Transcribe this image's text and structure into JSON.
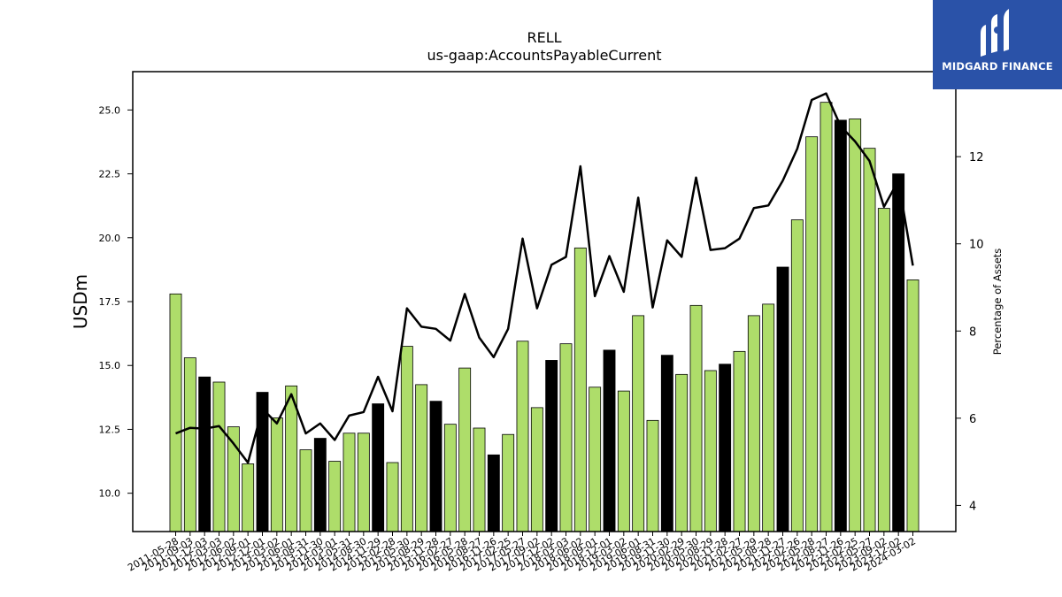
{
  "chart_data": {
    "type": "bar",
    "title": "RELL",
    "subtitle": "us-gaap:AccountsPayableCurrent",
    "ylabel": "USDm",
    "y2label": "Percentage of Assets",
    "ylim": [
      8.5,
      26.5
    ],
    "y2lim": [
      3.4,
      13.95
    ],
    "yticks": [
      10.0,
      12.5,
      15.0,
      17.5,
      20.0,
      22.5,
      25.0
    ],
    "yticklabels": [
      "10.0",
      "12.5",
      "15.0",
      "17.5",
      "20.0",
      "22.5",
      "25.0"
    ],
    "y2ticks": [
      4,
      6,
      8,
      10,
      12
    ],
    "y2ticklabels": [
      "4",
      "6",
      "8",
      "10",
      "12"
    ],
    "x": [
      "2011-05-28",
      "2011-09-03",
      "2011-12-03",
      "2012-03-03",
      "2012-06-02",
      "2012-09-01",
      "2012-12-01",
      "2013-03-02",
      "2013-06-01",
      "2013-08-31",
      "2013-11-30",
      "2014-03-01",
      "2014-05-31",
      "2014-08-30",
      "2014-11-29",
      "2015-02-28",
      "2015-05-30",
      "2015-08-29",
      "2015-11-28",
      "2016-02-27",
      "2016-05-28",
      "2016-08-27",
      "2016-11-26",
      "2017-02-25",
      "2017-05-27",
      "2017-09-02",
      "2017-12-02",
      "2018-03-03",
      "2018-06-02",
      "2018-09-01",
      "2018-12-01",
      "2019-03-02",
      "2019-06-01",
      "2019-08-31",
      "2019-11-30",
      "2020-02-29",
      "2020-05-30",
      "2020-08-29",
      "2020-11-28",
      "2021-02-27",
      "2021-05-29",
      "2021-08-28",
      "2021-11-27",
      "2022-02-26",
      "2022-05-28",
      "2022-08-27",
      "2022-11-26",
      "2023-02-25",
      "2023-05-27",
      "2023-09-02",
      "2023-12-02",
      "2024-03-02"
    ],
    "series": [
      {
        "type": "bar",
        "values": [
          17.8,
          15.3,
          14.55,
          14.35,
          12.6,
          11.15,
          13.95,
          12.95,
          14.2,
          11.7,
          12.15,
          11.25,
          12.35,
          12.35,
          13.5,
          11.2,
          15.75,
          14.25,
          13.6,
          12.7,
          14.9,
          12.55,
          11.5,
          12.3,
          15.95,
          13.35,
          15.2,
          15.85,
          19.6,
          14.15,
          15.6,
          14.0,
          16.95,
          12.85,
          15.4,
          14.65,
          17.35,
          14.8,
          15.05,
          15.55,
          16.95,
          17.4,
          18.85,
          20.7,
          23.95,
          25.3,
          24.6,
          24.65,
          23.5,
          21.15,
          22.5,
          18.35
        ],
        "highlight": [
          false,
          false,
          true,
          false,
          false,
          false,
          true,
          false,
          false,
          false,
          true,
          false,
          false,
          false,
          true,
          false,
          false,
          false,
          true,
          false,
          false,
          false,
          true,
          false,
          false,
          false,
          true,
          false,
          false,
          false,
          true,
          false,
          false,
          false,
          true,
          false,
          false,
          false,
          true,
          false,
          false,
          false,
          true,
          false,
          false,
          false,
          true,
          false,
          false,
          false,
          true,
          false
        ]
      },
      {
        "type": "line",
        "axis": "right",
        "values": [
          5.65,
          5.78,
          5.76,
          5.82,
          5.42,
          4.98,
          6.22,
          5.88,
          6.55,
          5.65,
          5.88,
          5.5,
          6.06,
          6.14,
          6.95,
          6.16,
          8.52,
          8.1,
          8.05,
          7.78,
          8.85,
          7.85,
          7.4,
          8.05,
          10.12,
          8.52,
          9.52,
          9.7,
          11.78,
          8.8,
          9.72,
          8.9,
          11.06,
          8.54,
          10.08,
          9.7,
          11.52,
          9.86,
          9.9,
          10.12,
          10.82,
          10.88,
          11.45,
          12.18,
          13.3,
          13.45,
          12.7,
          12.35,
          11.9,
          10.85,
          11.45,
          9.5
        ]
      }
    ],
    "colors": {
      "bar": "#aedd6a",
      "bar_highlight": "#000000",
      "bar_edge": "#000000",
      "line": "#000000"
    },
    "grid": false,
    "legend": "none"
  },
  "logo": {
    "text": "MIDGARD FINANCE",
    "bg_color": "#2a52a8",
    "icon": "midgard-logo-icon"
  }
}
